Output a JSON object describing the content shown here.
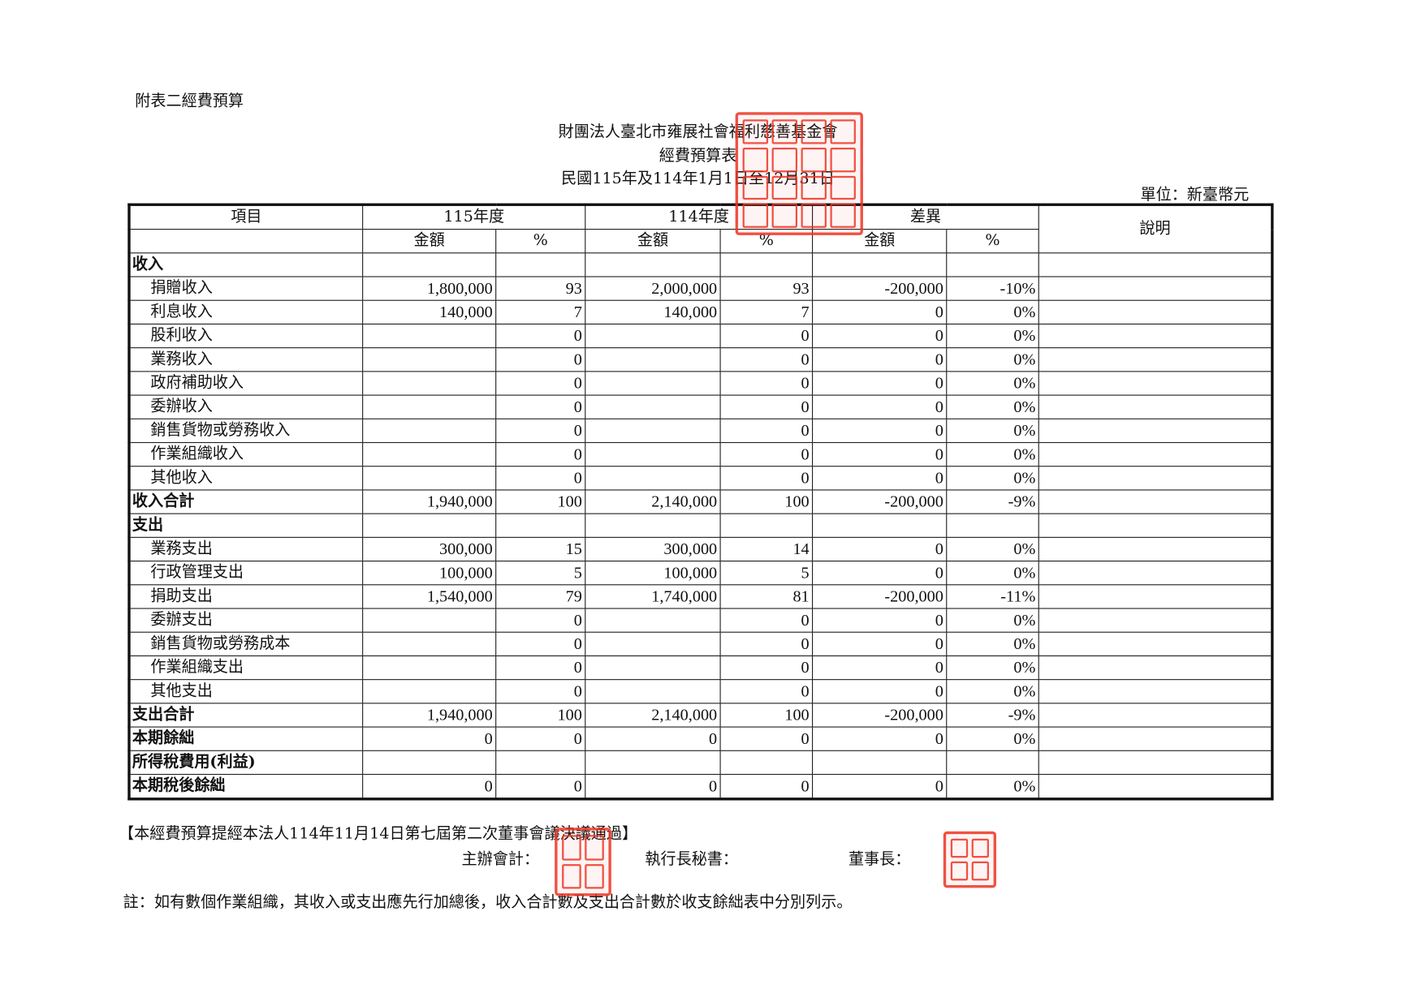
{
  "attachment_label": "附表二經費預算",
  "header": {
    "org_name": "財團法人臺北市雍展社會福利慈善基金會",
    "doc_title": "經費預算表",
    "period": "民國115年及114年1月1日至12月31日",
    "unit": "單位：新臺幣元"
  },
  "table": {
    "col_item": "項目",
    "col_115": "115年度",
    "col_114": "114年度",
    "col_diff": "差異",
    "col_note": "說明",
    "sub_amount": "金額",
    "sub_pct": "%",
    "rows": [
      {
        "label": "收入",
        "type": "section",
        "a115": "",
        "p115": "",
        "a114": "",
        "p114": "",
        "ad": "",
        "pd": ""
      },
      {
        "label": "捐贈收入",
        "type": "item",
        "a115": "1,800,000",
        "p115": "93",
        "a114": "2,000,000",
        "p114": "93",
        "ad": "-200,000",
        "pd": "-10%"
      },
      {
        "label": "利息收入",
        "type": "item",
        "a115": "140,000",
        "p115": "7",
        "a114": "140,000",
        "p114": "7",
        "ad": "0",
        "pd": "0%"
      },
      {
        "label": "股利收入",
        "type": "item",
        "a115": "",
        "p115": "0",
        "a114": "",
        "p114": "0",
        "ad": "0",
        "pd": "0%"
      },
      {
        "label": "業務收入",
        "type": "item",
        "a115": "",
        "p115": "0",
        "a114": "",
        "p114": "0",
        "ad": "0",
        "pd": "0%"
      },
      {
        "label": "政府補助收入",
        "type": "item",
        "a115": "",
        "p115": "0",
        "a114": "",
        "p114": "0",
        "ad": "0",
        "pd": "0%"
      },
      {
        "label": "委辦收入",
        "type": "item",
        "a115": "",
        "p115": "0",
        "a114": "",
        "p114": "0",
        "ad": "0",
        "pd": "0%"
      },
      {
        "label": "銷售貨物或勞務收入",
        "type": "item",
        "a115": "",
        "p115": "0",
        "a114": "",
        "p114": "0",
        "ad": "0",
        "pd": "0%"
      },
      {
        "label": "作業組織收入",
        "type": "item",
        "a115": "",
        "p115": "0",
        "a114": "",
        "p114": "0",
        "ad": "0",
        "pd": "0%"
      },
      {
        "label": "其他收入",
        "type": "item",
        "a115": "",
        "p115": "0",
        "a114": "",
        "p114": "0",
        "ad": "0",
        "pd": "0%"
      },
      {
        "label": "收入合計",
        "type": "section",
        "a115": "1,940,000",
        "p115": "100",
        "a114": "2,140,000",
        "p114": "100",
        "ad": "-200,000",
        "pd": "-9%"
      },
      {
        "label": "支出",
        "type": "section",
        "a115": "",
        "p115": "",
        "a114": "",
        "p114": "",
        "ad": "",
        "pd": ""
      },
      {
        "label": "業務支出",
        "type": "item",
        "a115": "300,000",
        "p115": "15",
        "a114": "300,000",
        "p114": "14",
        "ad": "0",
        "pd": "0%"
      },
      {
        "label": "行政管理支出",
        "type": "item",
        "a115": "100,000",
        "p115": "5",
        "a114": "100,000",
        "p114": "5",
        "ad": "0",
        "pd": "0%"
      },
      {
        "label": "捐助支出",
        "type": "item",
        "a115": "1,540,000",
        "p115": "79",
        "a114": "1,740,000",
        "p114": "81",
        "ad": "-200,000",
        "pd": "-11%"
      },
      {
        "label": "委辦支出",
        "type": "item",
        "a115": "",
        "p115": "0",
        "a114": "",
        "p114": "0",
        "ad": "0",
        "pd": "0%"
      },
      {
        "label": "銷售貨物或勞務成本",
        "type": "item",
        "a115": "",
        "p115": "0",
        "a114": "",
        "p114": "0",
        "ad": "0",
        "pd": "0%"
      },
      {
        "label": "作業組織支出",
        "type": "item",
        "a115": "",
        "p115": "0",
        "a114": "",
        "p114": "0",
        "ad": "0",
        "pd": "0%"
      },
      {
        "label": "其他支出",
        "type": "item",
        "a115": "",
        "p115": "0",
        "a114": "",
        "p114": "0",
        "ad": "0",
        "pd": "0%"
      },
      {
        "label": "支出合計",
        "type": "section",
        "a115": "1,940,000",
        "p115": "100",
        "a114": "2,140,000",
        "p114": "100",
        "ad": "-200,000",
        "pd": "-9%"
      },
      {
        "label": "本期餘絀",
        "type": "section",
        "a115": "0",
        "p115": "0",
        "a114": "0",
        "p114": "0",
        "ad": "0",
        "pd": "0%"
      },
      {
        "label": "所得稅費用(利益)",
        "type": "section",
        "a115": "",
        "p115": "",
        "a114": "",
        "p114": "",
        "ad": "",
        "pd": ""
      },
      {
        "label": "本期稅後餘絀",
        "type": "section",
        "a115": "0",
        "p115": "0",
        "a114": "0",
        "p114": "0",
        "ad": "0",
        "pd": "0%"
      }
    ]
  },
  "footer": {
    "approval": "【本經費預算提經本法人114年11月14日第七屆第二次董事會議決議通過】",
    "accountant": "主辦會計：",
    "secretary": "執行長秘書：",
    "chairman": "董事長：",
    "note": "註：如有數個作業組織，其收入或支出應先行加總後，收入合計數及支出合計數於收支餘絀表中分別列示。"
  },
  "stamps": {
    "org_seal": "財團法人臺北市雍展社會福利慈善基金會",
    "color": "#e32222"
  }
}
